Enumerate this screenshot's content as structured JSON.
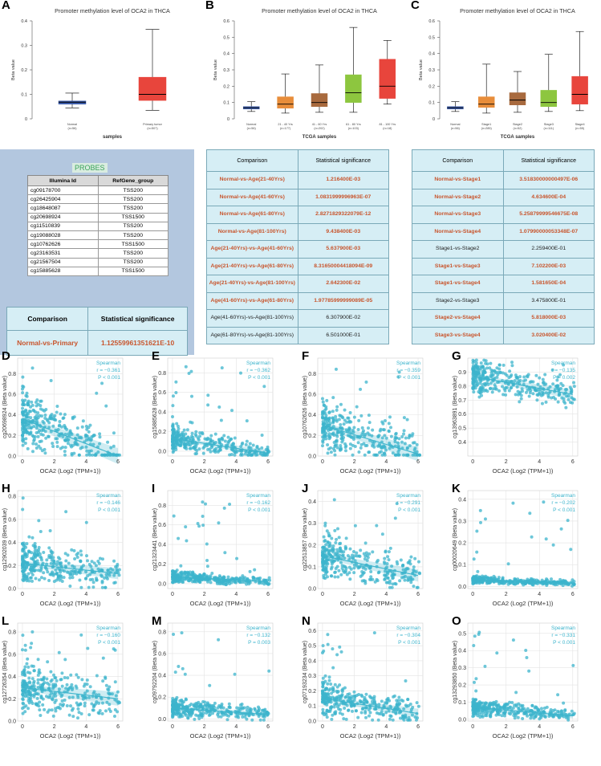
{
  "panels_top": [
    {
      "label": "A",
      "title": "Promoter methylation level of OCA2 in THCA",
      "ylabel": "Beta value",
      "xlabel": "samples",
      "yticks": [
        "0",
        "0.1",
        "0.2",
        "0.3",
        "0.4"
      ],
      "groups": [
        {
          "name": "Normal",
          "n": "(n=56)"
        },
        {
          "name": "Primary tumor",
          "n": "(n=507)"
        }
      ]
    },
    {
      "label": "B",
      "title": "Promoter methylation level of OCA2 in THCA",
      "ylabel": "Beta value",
      "xlabel": "TCGA samples",
      "yticks": [
        "0",
        "0.1",
        "0.2",
        "0.3",
        "0.4",
        "0.5",
        "0.6"
      ],
      "groups": [
        {
          "name": "Normal",
          "n": "(n=56)"
        },
        {
          "name": "21 - 40 Yrs",
          "n": "(n=177)"
        },
        {
          "name": "41 - 60 Yrs",
          "n": "(n=202)"
        },
        {
          "name": "61 - 80 Yrs",
          "n": "(n=103)"
        },
        {
          "name": "81 - 100 Yrs",
          "n": "(n=18)"
        }
      ]
    },
    {
      "label": "C",
      "title": "Promoter methylation level of OCA2 in THCA",
      "ylabel": "Beta value",
      "xlabel": "TCGA samples",
      "yticks": [
        "0",
        "0.1",
        "0.2",
        "0.3",
        "0.4",
        "0.5",
        "0.6"
      ],
      "groups": [
        {
          "name": "Normal",
          "n": "(n=56)"
        },
        {
          "name": "Stage1",
          "n": "(n=285)"
        },
        {
          "name": "Stage2",
          "n": "(n=52)"
        },
        {
          "name": "Stage3",
          "n": "(n=111)"
        },
        {
          "name": "Stage4",
          "n": "(n=55)"
        }
      ]
    }
  ],
  "probes": {
    "title": "PROBES",
    "headers": [
      "Illumina Id",
      "RefGene_group"
    ],
    "rows": [
      [
        "cg09178700",
        "TSS200"
      ],
      [
        "cg26425904",
        "TSS200"
      ],
      [
        "cg18648087",
        "TSS200"
      ],
      [
        "cg20698924",
        "TSS1500"
      ],
      [
        "cg11510839",
        "TSS200"
      ],
      [
        "cg19088028",
        "TSS200"
      ],
      [
        "cg10762626",
        "TSS1500"
      ],
      [
        "cg23163531",
        "TSS200"
      ],
      [
        "cg21567504",
        "TSS200"
      ],
      [
        "cg15885628",
        "TSS1500"
      ]
    ]
  },
  "table_a": {
    "headers": [
      "Comparison",
      "Statistical significance"
    ],
    "rows": [
      [
        "Normal-vs-Primary",
        "1.12559961351621E-10"
      ]
    ]
  },
  "table_b": {
    "headers": [
      "Comparison",
      "Statistical significance"
    ],
    "rows": [
      {
        "c": "Normal-vs-Age(21-40Yrs)",
        "v": "1.216400E-03",
        "sig": true
      },
      {
        "c": "Normal-vs-Age(41-60Yrs)",
        "v": "1.0831999996963E-07",
        "sig": true
      },
      {
        "c": "Normal-vs-Age(61-80Yrs)",
        "v": "2.8271829322079E-12",
        "sig": true
      },
      {
        "c": "Normal-vs-Age(81-100Yrs)",
        "v": "9.438400E-03",
        "sig": true
      },
      {
        "c": "Age(21-40Yrs)-vs-Age(41-60Yrs)",
        "v": "5.637900E-03",
        "sig": true
      },
      {
        "c": "Age(21-40Yrs)-vs-Age(61-80Yrs)",
        "v": "8.31650004418094E-09",
        "sig": true
      },
      {
        "c": "Age(21-40Yrs)-vs-Age(81-100Yrs)",
        "v": "2.642300E-02",
        "sig": true
      },
      {
        "c": "Age(41-60Yrs)-vs-Age(61-80Yrs)",
        "v": "1.97785999999089E-05",
        "sig": true
      },
      {
        "c": "Age(41-60Yrs)-vs-Age(81-100Yrs)",
        "v": "6.307900E-02",
        "sig": false
      },
      {
        "c": "Age(61-80Yrs)-vs-Age(81-100Yrs)",
        "v": "6.501000E-01",
        "sig": false
      }
    ]
  },
  "table_c": {
    "headers": [
      "Comparison",
      "Statistical significance"
    ],
    "rows": [
      {
        "c": "Normal-vs-Stage1",
        "v": "3.51830000000497E-06",
        "sig": true
      },
      {
        "c": "Normal-vs-Stage2",
        "v": "4.634600E-04",
        "sig": true
      },
      {
        "c": "Normal-vs-Stage3",
        "v": "5.25879999546675E-08",
        "sig": true
      },
      {
        "c": "Normal-vs-Stage4",
        "v": "1.07990000053348E-07",
        "sig": true
      },
      {
        "c": "Stage1-vs-Stage2",
        "v": "2.259400E-01",
        "sig": false
      },
      {
        "c": "Stage1-vs-Stage3",
        "v": "7.102200E-03",
        "sig": true
      },
      {
        "c": "Stage1-vs-Stage4",
        "v": "1.581650E-04",
        "sig": true
      },
      {
        "c": "Stage2-vs-Stage3",
        "v": "3.475800E-01",
        "sig": false
      },
      {
        "c": "Stage2-vs-Stage4",
        "v": "5.818000E-03",
        "sig": true
      },
      {
        "c": "Stage3-vs-Stage4",
        "v": "3.020400E-02",
        "sig": true
      }
    ]
  },
  "scatter_xlabel": "OCA2 (Log2 (TPM+1))",
  "scatter_xticks": [
    "0",
    "2",
    "4",
    "6"
  ],
  "spearman_label": "Spearman",
  "colors": {
    "normal": "#3b5ba9",
    "primary": "#e8453c",
    "age1": "#e88d3a",
    "age2": "#a86a3e",
    "age3": "#8dc63f",
    "age4": "#e8453c",
    "scatter": "#3cb4cc",
    "table_bg": "#d6eef5",
    "sig_text": "#c8552d",
    "probe_panel": "#b3c7df"
  },
  "chart_data": [
    {
      "type": "box",
      "panel": "A",
      "title": "Promoter methylation level of OCA2 in THCA",
      "ylabel": "Beta value",
      "xlabel": "samples",
      "ylim": [
        0,
        0.4
      ],
      "categories": [
        "Normal",
        "Primary tumor"
      ],
      "boxes": [
        {
          "min": 0.045,
          "q1": 0.06,
          "median": 0.068,
          "q3": 0.073,
          "max": 0.105
        },
        {
          "min": 0.035,
          "q1": 0.075,
          "median": 0.1,
          "q3": 0.17,
          "max": 0.365
        }
      ]
    },
    {
      "type": "box",
      "panel": "B",
      "title": "Promoter methylation level of OCA2 in THCA",
      "ylabel": "Beta value",
      "xlabel": "TCGA samples",
      "ylim": [
        0,
        0.6
      ],
      "categories": [
        "Normal",
        "21 - 40 Yrs",
        "41 - 60 Yrs",
        "61 - 80 Yrs",
        "81 - 100 Yrs"
      ],
      "boxes": [
        {
          "min": 0.045,
          "q1": 0.06,
          "median": 0.068,
          "q3": 0.075,
          "max": 0.105
        },
        {
          "min": 0.035,
          "q1": 0.065,
          "median": 0.09,
          "q3": 0.135,
          "max": 0.275
        },
        {
          "min": 0.04,
          "q1": 0.075,
          "median": 0.1,
          "q3": 0.155,
          "max": 0.33
        },
        {
          "min": 0.04,
          "q1": 0.1,
          "median": 0.16,
          "q3": 0.27,
          "max": 0.56
        },
        {
          "min": 0.09,
          "q1": 0.125,
          "median": 0.2,
          "q3": 0.365,
          "max": 0.48
        }
      ]
    },
    {
      "type": "box",
      "panel": "C",
      "title": "Promoter methylation level of OCA2 in THCA",
      "ylabel": "Beta value",
      "xlabel": "TCGA samples",
      "ylim": [
        0,
        0.6
      ],
      "categories": [
        "Normal",
        "Stage1",
        "Stage2",
        "Stage3",
        "Stage4"
      ],
      "boxes": [
        {
          "min": 0.045,
          "q1": 0.06,
          "median": 0.068,
          "q3": 0.075,
          "max": 0.105
        },
        {
          "min": 0.035,
          "q1": 0.07,
          "median": 0.09,
          "q3": 0.135,
          "max": 0.335
        },
        {
          "min": 0.04,
          "q1": 0.085,
          "median": 0.115,
          "q3": 0.16,
          "max": 0.29
        },
        {
          "min": 0.045,
          "q1": 0.075,
          "median": 0.1,
          "q3": 0.175,
          "max": 0.395
        },
        {
          "min": 0.05,
          "q1": 0.09,
          "median": 0.15,
          "q3": 0.26,
          "max": 0.535
        }
      ]
    },
    {
      "type": "scatter",
      "panel": "D",
      "ylabel": "cg20698924 (Beta value)",
      "xlabel": "OCA2 (Log2 (TPM+1))",
      "r": "r = −0.361",
      "p": "P < 0.001",
      "xlim": [
        -0.3,
        6.3
      ],
      "ylim": [
        0,
        0.95
      ],
      "yticks": [
        "0.0",
        "0.2",
        "0.4",
        "0.6",
        "0.8"
      ],
      "yvals": [
        0,
        0.2,
        0.4,
        0.6,
        0.8
      ],
      "fit": [
        0.36,
        0.0
      ],
      "center": 0.3,
      "spread": 0.22
    },
    {
      "type": "scatter",
      "panel": "E",
      "ylabel": "cg15885628 (Beta value)",
      "xlabel": "OCA2 (Log2 (TPM+1))",
      "r": "r = −0.362",
      "p": "P < 0.001",
      "xlim": [
        -0.3,
        6.3
      ],
      "ylim": [
        -0.05,
        0.95
      ],
      "yticks": [
        "0.0",
        "0.2",
        "0.4",
        "0.6",
        "0.8"
      ],
      "yvals": [
        0,
        0.2,
        0.4,
        0.6,
        0.8
      ],
      "fit": [
        0.13,
        -0.02
      ],
      "center": 0.1,
      "spread": 0.1
    },
    {
      "type": "scatter",
      "panel": "F",
      "ylabel": "cg10762626 (Beta value)",
      "xlabel": "OCA2 (Log2 (TPM+1))",
      "r": "r = −0.359",
      "p": "P < 0.001",
      "xlim": [
        -0.3,
        6.3
      ],
      "ylim": [
        0,
        0.95
      ],
      "yticks": [
        "0.0",
        "0.2",
        "0.4",
        "0.6",
        "0.8"
      ],
      "yvals": [
        0,
        0.2,
        0.4,
        0.6,
        0.8
      ],
      "fit": [
        0.3,
        0.02
      ],
      "center": 0.25,
      "spread": 0.2
    },
    {
      "type": "scatter",
      "panel": "G",
      "ylabel": "cg13963891 (Beta value)",
      "xlabel": "OCA2 (Log2 (TPM+1))",
      "r": "r = −0.135",
      "p": "P = 0.002",
      "xlim": [
        -0.3,
        6.3
      ],
      "ylim": [
        0.3,
        1.0
      ],
      "yticks": [
        "0.4",
        "0.5",
        "0.6",
        "0.7",
        "0.8",
        "0.9"
      ],
      "yvals": [
        0.4,
        0.5,
        0.6,
        0.7,
        0.8,
        0.9
      ],
      "fit": [
        0.87,
        0.74
      ],
      "center": 0.85,
      "spread": 0.1
    },
    {
      "type": "scatter",
      "panel": "H",
      "ylabel": "cg12902039 (Beta value)",
      "xlabel": "OCA2 (Log2 (TPM+1))",
      "r": "r = −0.146",
      "p": "P < 0.001",
      "xlim": [
        -0.3,
        6.3
      ],
      "ylim": [
        0,
        0.85
      ],
      "yticks": [
        "0.0",
        "0.2",
        "0.4",
        "0.6",
        "0.8"
      ],
      "yvals": [
        0,
        0.2,
        0.4,
        0.6,
        0.8
      ],
      "fit": [
        0.22,
        0.13
      ],
      "center": 0.2,
      "spread": 0.14
    },
    {
      "type": "scatter",
      "panel": "I",
      "ylabel": "cg21323441 (Beta value)",
      "xlabel": "OCA2 (Log2 (TPM+1))",
      "r": "r = −0.162",
      "p": "P < 0.001",
      "xlim": [
        -0.3,
        6.3
      ],
      "ylim": [
        -0.05,
        0.95
      ],
      "yticks": [
        "0.0",
        "0.2",
        "0.4",
        "0.6",
        "0.8"
      ],
      "yvals": [
        0,
        0.2,
        0.4,
        0.6,
        0.8
      ],
      "fit": [
        0.07,
        0.02
      ],
      "center": 0.06,
      "spread": 0.05
    },
    {
      "type": "scatter",
      "panel": "J",
      "ylabel": "cg22513857 (Beta value)",
      "xlabel": "OCA2 (Log2 (TPM+1))",
      "r": "r = −0.291",
      "p": "P < 0.001",
      "xlim": [
        -0.3,
        6.3
      ],
      "ylim": [
        0,
        0.45
      ],
      "yticks": [
        "0.0",
        "0.1",
        "0.2",
        "0.3",
        "0.4"
      ],
      "yvals": [
        0,
        0.1,
        0.2,
        0.3,
        0.4
      ],
      "fit": [
        0.15,
        0.06
      ],
      "center": 0.13,
      "spread": 0.08
    },
    {
      "type": "scatter",
      "panel": "K",
      "ylabel": "cg00020649 (Beta value)",
      "xlabel": "OCA2 (Log2 (TPM+1))",
      "r": "r = −0.202",
      "p": "P < 0.001",
      "xlim": [
        -0.3,
        6.3
      ],
      "ylim": [
        -0.01,
        0.44
      ],
      "yticks": [
        "0.0",
        "0.1",
        "0.2",
        "0.3",
        "0.4"
      ],
      "yvals": [
        0,
        0.1,
        0.2,
        0.3,
        0.4
      ],
      "fit": [
        0.03,
        0.015
      ],
      "center": 0.025,
      "spread": 0.015
    },
    {
      "type": "scatter",
      "panel": "L",
      "ylabel": "cg12726354 (Beta value)",
      "xlabel": "OCA2 (Log2 (TPM+1))",
      "r": "r = −0.160",
      "p": "P < 0.001",
      "xlim": [
        -0.3,
        6.3
      ],
      "ylim": [
        0,
        0.88
      ],
      "yticks": [
        "0.0",
        "0.2",
        "0.4",
        "0.6",
        "0.8"
      ],
      "yvals": [
        0,
        0.2,
        0.4,
        0.6,
        0.8
      ],
      "fit": [
        0.3,
        0.2
      ],
      "center": 0.3,
      "spread": 0.18
    },
    {
      "type": "scatter",
      "panel": "M",
      "ylabel": "cg09792204 (Beta value)",
      "xlabel": "OCA2 (Log2 (TPM+1))",
      "r": "r = −0.132",
      "p": "P = 0.003",
      "xlim": [
        -0.3,
        6.3
      ],
      "ylim": [
        -0.02,
        0.88
      ],
      "yticks": [
        "0.0",
        "0.2",
        "0.4",
        "0.6",
        "0.8"
      ],
      "yvals": [
        0,
        0.2,
        0.4,
        0.6,
        0.8
      ],
      "fit": [
        0.1,
        0.04
      ],
      "center": 0.08,
      "spread": 0.07
    },
    {
      "type": "scatter",
      "panel": "N",
      "ylabel": "cg07193234 (Beta value)",
      "xlabel": "OCA2 (Log2 (TPM+1))",
      "r": "r = −0.304",
      "p": "P < 0.001",
      "xlim": [
        -0.3,
        6.3
      ],
      "ylim": [
        0,
        0.65
      ],
      "yticks": [
        "0.0",
        "0.1",
        "0.2",
        "0.3",
        "0.4",
        "0.5",
        "0.6"
      ],
      "yvals": [
        0,
        0.1,
        0.2,
        0.3,
        0.4,
        0.5,
        0.6
      ],
      "fit": [
        0.15,
        0.05
      ],
      "center": 0.13,
      "spread": 0.09
    },
    {
      "type": "scatter",
      "panel": "O",
      "ylabel": "cg13293850 (Beta value)",
      "xlabel": "OCA2 (Log2 (TPM+1))",
      "r": "r = −0.331",
      "p": "P < 0.001",
      "xlim": [
        -0.3,
        6.3
      ],
      "ylim": [
        -0.01,
        0.56
      ],
      "yticks": [
        "0.0",
        "0.1",
        "0.2",
        "0.3",
        "0.4",
        "0.5"
      ],
      "yvals": [
        0,
        0.1,
        0.2,
        0.3,
        0.4,
        0.5
      ],
      "fit": [
        0.07,
        0.02
      ],
      "center": 0.06,
      "spread": 0.04
    }
  ]
}
